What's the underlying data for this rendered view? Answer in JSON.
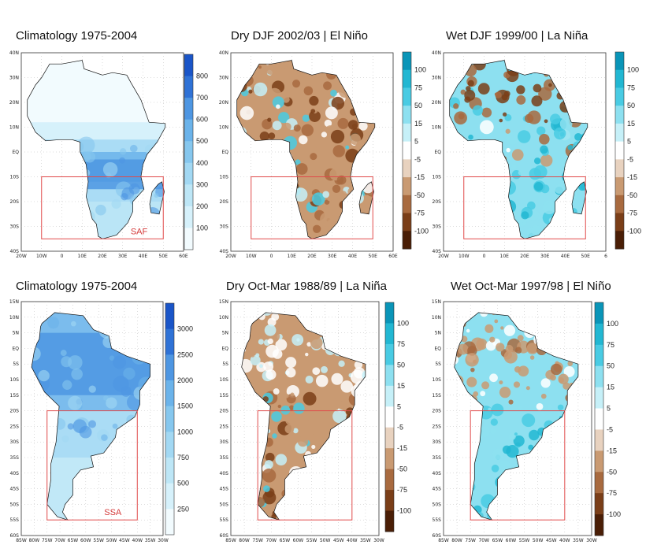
{
  "panels": [
    {
      "title": "Climatology 1975-2004",
      "region_label": "SAF",
      "colorbar": {
        "palette": "blues",
        "ticks": [
          "800",
          "700",
          "600",
          "500",
          "400",
          "300",
          "200",
          "100"
        ]
      },
      "lat_ticks": [
        "40N",
        "30N",
        "20N",
        "10N",
        "EQ",
        "10S",
        "20S",
        "30S",
        "40S"
      ],
      "lon_ticks": [
        "20W",
        "10W",
        "0",
        "10E",
        "20E",
        "30E",
        "40E",
        "50E",
        "60E"
      ]
    },
    {
      "title": "Dry DJF 2002/03  | El Niño",
      "colorbar": {
        "palette": "diverging",
        "ticks": [
          "100",
          "75",
          "50",
          "15",
          "5",
          "-5",
          "-15",
          "-50",
          "-75",
          "-100"
        ]
      },
      "lat_ticks": [
        "40N",
        "30N",
        "20N",
        "10N",
        "EQ",
        "10S",
        "20S",
        "30S",
        "40S"
      ],
      "lon_ticks": [
        "20W",
        "10W",
        "0",
        "10E",
        "20E",
        "30E",
        "40E",
        "50E",
        "60E"
      ]
    },
    {
      "title": "Wet DJF 1999/00 | La Niña",
      "colorbar": {
        "palette": "diverging",
        "ticks": [
          "100",
          "75",
          "50",
          "15",
          "5",
          "-5",
          "-15",
          "-50",
          "-75",
          "-100"
        ]
      },
      "lat_ticks": [
        "40N",
        "30N",
        "20N",
        "10N",
        "EQ",
        "10S",
        "20S",
        "30S",
        "40S"
      ],
      "lon_ticks": [
        "20W",
        "10W",
        "0",
        "10E",
        "20E",
        "30E",
        "40E",
        "50E",
        "6"
      ]
    },
    {
      "title": "Climatology 1975-2004",
      "region_label": "SSA",
      "colorbar": {
        "palette": "blues",
        "ticks": [
          "3000",
          "2500",
          "2000",
          "1500",
          "1000",
          "750",
          "500",
          "250"
        ]
      },
      "lat_ticks": [
        "15N",
        "10N",
        "5N",
        "EQ",
        "5S",
        "10S",
        "15S",
        "20S",
        "25S",
        "30S",
        "35S",
        "40S",
        "45S",
        "50S",
        "55S",
        "60S"
      ],
      "lon_ticks": [
        "85W",
        "80W",
        "75W",
        "70W",
        "65W",
        "60W",
        "55W",
        "50W",
        "45W",
        "40W",
        "35W",
        "30W"
      ]
    },
    {
      "title": "Dry Oct-Mar 1988/89 | La Niña",
      "colorbar": {
        "palette": "diverging",
        "ticks": [
          "100",
          "75",
          "50",
          "15",
          "5",
          "-5",
          "-15",
          "-50",
          "-75",
          "-100"
        ]
      },
      "lat_ticks": [
        "15N",
        "10N",
        "5N",
        "EQ",
        "5S",
        "10S",
        "15S",
        "20S",
        "25S",
        "30S",
        "35S",
        "40S",
        "45S",
        "50S",
        "55S",
        "60S"
      ],
      "lon_ticks": [
        "85W",
        "80W",
        "75W",
        "70W",
        "65W",
        "60W",
        "55W",
        "50W",
        "45W",
        "40W",
        "35W",
        "30W"
      ]
    },
    {
      "title": "Wet Oct-Mar 1997/98 | El Niño",
      "colorbar": {
        "palette": "diverging",
        "ticks": [
          "100",
          "75",
          "50",
          "15",
          "5",
          "-5",
          "-15",
          "-50",
          "-75",
          "-100"
        ]
      },
      "lat_ticks": [
        "15N",
        "10N",
        "5N",
        "EQ",
        "5S",
        "10S",
        "15S",
        "20S",
        "25S",
        "30S",
        "35S",
        "40S",
        "45S",
        "50S",
        "55S",
        "60S"
      ],
      "lon_ticks": [
        "85W",
        "80W",
        "75W",
        "70W",
        "65W",
        "60W",
        "55W",
        "50W",
        "45W",
        "40W",
        "35W",
        "30W"
      ]
    }
  ],
  "colors": {
    "box": "#e04a4a",
    "region_label": "#d43a3a",
    "blues": [
      "#f2fbfe",
      "#d6f1fb",
      "#bde6f6",
      "#a2d8f3",
      "#86c7ee",
      "#6bb3ea",
      "#4e96e2",
      "#2f72d6",
      "#1a55c8"
    ],
    "diverging": [
      "#0a95b8",
      "#22b7d2",
      "#49cbe3",
      "#8de0f0",
      "#c6f0f8",
      "#ffffff",
      "#e8d2bf",
      "#c99a72",
      "#a86a3f",
      "#7a3e18",
      "#4a1e06"
    ]
  }
}
